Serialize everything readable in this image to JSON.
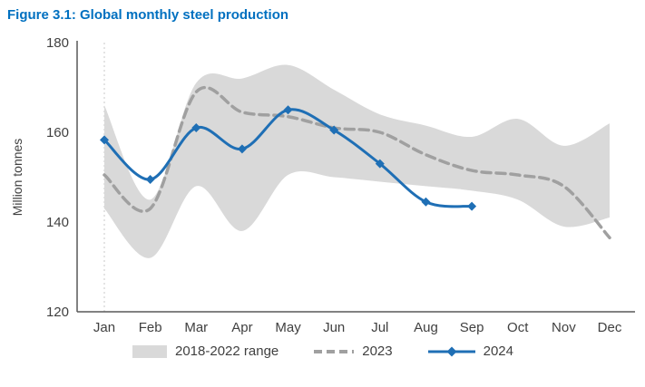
{
  "title": "Figure 3.1: Global monthly steel production",
  "colors": {
    "title": "#0070C0",
    "band": "#D9D9D9",
    "line_2023": "#A0A0A0",
    "line_2024": "#1F6FB5",
    "axis": "#595959",
    "text": "#404040",
    "gridline": "#C8C8C8"
  },
  "chart_data": {
    "type": "line",
    "title": "Figure 3.1: Global monthly steel production",
    "ylabel": "Million tonnes",
    "ylim": [
      120,
      180
    ],
    "yticks": [
      120,
      140,
      160,
      180
    ],
    "categories": [
      "Jan",
      "Feb",
      "Mar",
      "Apr",
      "May",
      "Jun",
      "Jul",
      "Aug",
      "Sep",
      "Oct",
      "Nov",
      "Dec"
    ],
    "grid": "off",
    "legend_position": "bottom",
    "legend": [
      "2018-2022 range",
      "2023",
      "2024"
    ],
    "series": [
      {
        "name": "2018-2022 range",
        "type": "band",
        "upper": [
          166,
          145,
          171,
          172,
          175,
          169.5,
          164,
          161.5,
          159,
          163,
          157,
          162
        ],
        "lower": [
          143,
          132,
          148,
          138,
          150.5,
          150,
          149,
          148,
          147,
          145,
          139,
          141
        ]
      },
      {
        "name": "2023",
        "type": "dashed-line",
        "values": [
          150.5,
          143,
          169,
          164.5,
          163.5,
          161,
          160,
          155,
          151.5,
          150.5,
          148,
          136.5
        ]
      },
      {
        "name": "2024",
        "type": "line-markers",
        "values": [
          158.3,
          149.5,
          161,
          156.3,
          165,
          160.5,
          153,
          144.5,
          143.5
        ]
      }
    ]
  }
}
